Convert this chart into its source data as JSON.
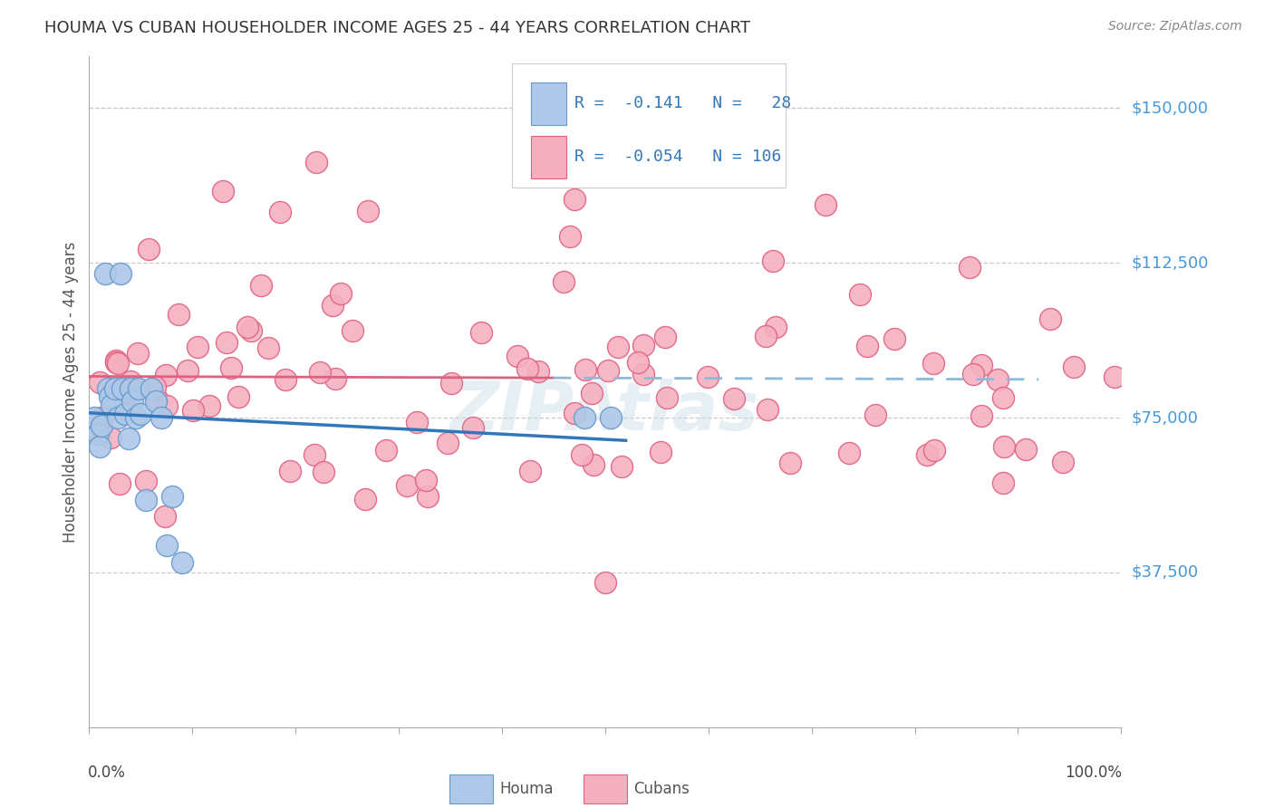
{
  "title": "HOUMA VS CUBAN HOUSEHOLDER INCOME AGES 25 - 44 YEARS CORRELATION CHART",
  "source": "Source: ZipAtlas.com",
  "ylabel": "Householder Income Ages 25 - 44 years",
  "ytick_labels": [
    "$37,500",
    "$75,000",
    "$112,500",
    "$150,000"
  ],
  "ytick_values": [
    37500,
    75000,
    112500,
    150000
  ],
  "ymin": 0,
  "ymax": 162500,
  "xmin": 0.0,
  "xmax": 1.0,
  "watermark": "ZIPAtlas",
  "houma_color": "#adc8e8",
  "cuban_color": "#f5b0c0",
  "houma_edge": "#6699cc",
  "cuban_edge": "#e06080",
  "trend_houma_color": "#3377bb",
  "trend_cuban_color": "#e06080",
  "trend_dashed_color": "#88bbdd",
  "grid_color": "#cccccc",
  "title_color": "#333333",
  "source_color": "#888888",
  "ytick_color": "#4499dd",
  "xtick_label_color": "#444444",
  "legend_text_color": "#3377bb",
  "legend_border_color": "#cccccc",
  "bottom_legend_text_color": "#555555"
}
